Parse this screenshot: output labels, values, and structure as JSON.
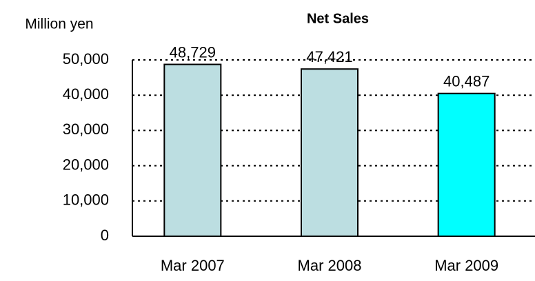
{
  "chart_data": {
    "type": "bar",
    "title": "Net Sales",
    "y_label": "Million yen",
    "categories": [
      "Mar 2007",
      "Mar 2008",
      "Mar 2009"
    ],
    "values": [
      48729,
      47421,
      40487
    ],
    "value_labels": [
      "48,729",
      "47,421",
      "40,487"
    ],
    "colors": [
      "#bcdee1",
      "#bcdee1",
      "#00ffff"
    ],
    "ylim": [
      0,
      50000
    ],
    "yticks": [
      0,
      {
        "value": 10000,
        "label": "10,000"
      },
      {
        "value": 20000,
        "label": "20,000"
      },
      {
        "value": 30000,
        "label": "30,000"
      },
      {
        "value": 40000,
        "label": "40,000"
      },
      {
        "value": 50000,
        "label": "50,000"
      }
    ],
    "grid": true
  }
}
